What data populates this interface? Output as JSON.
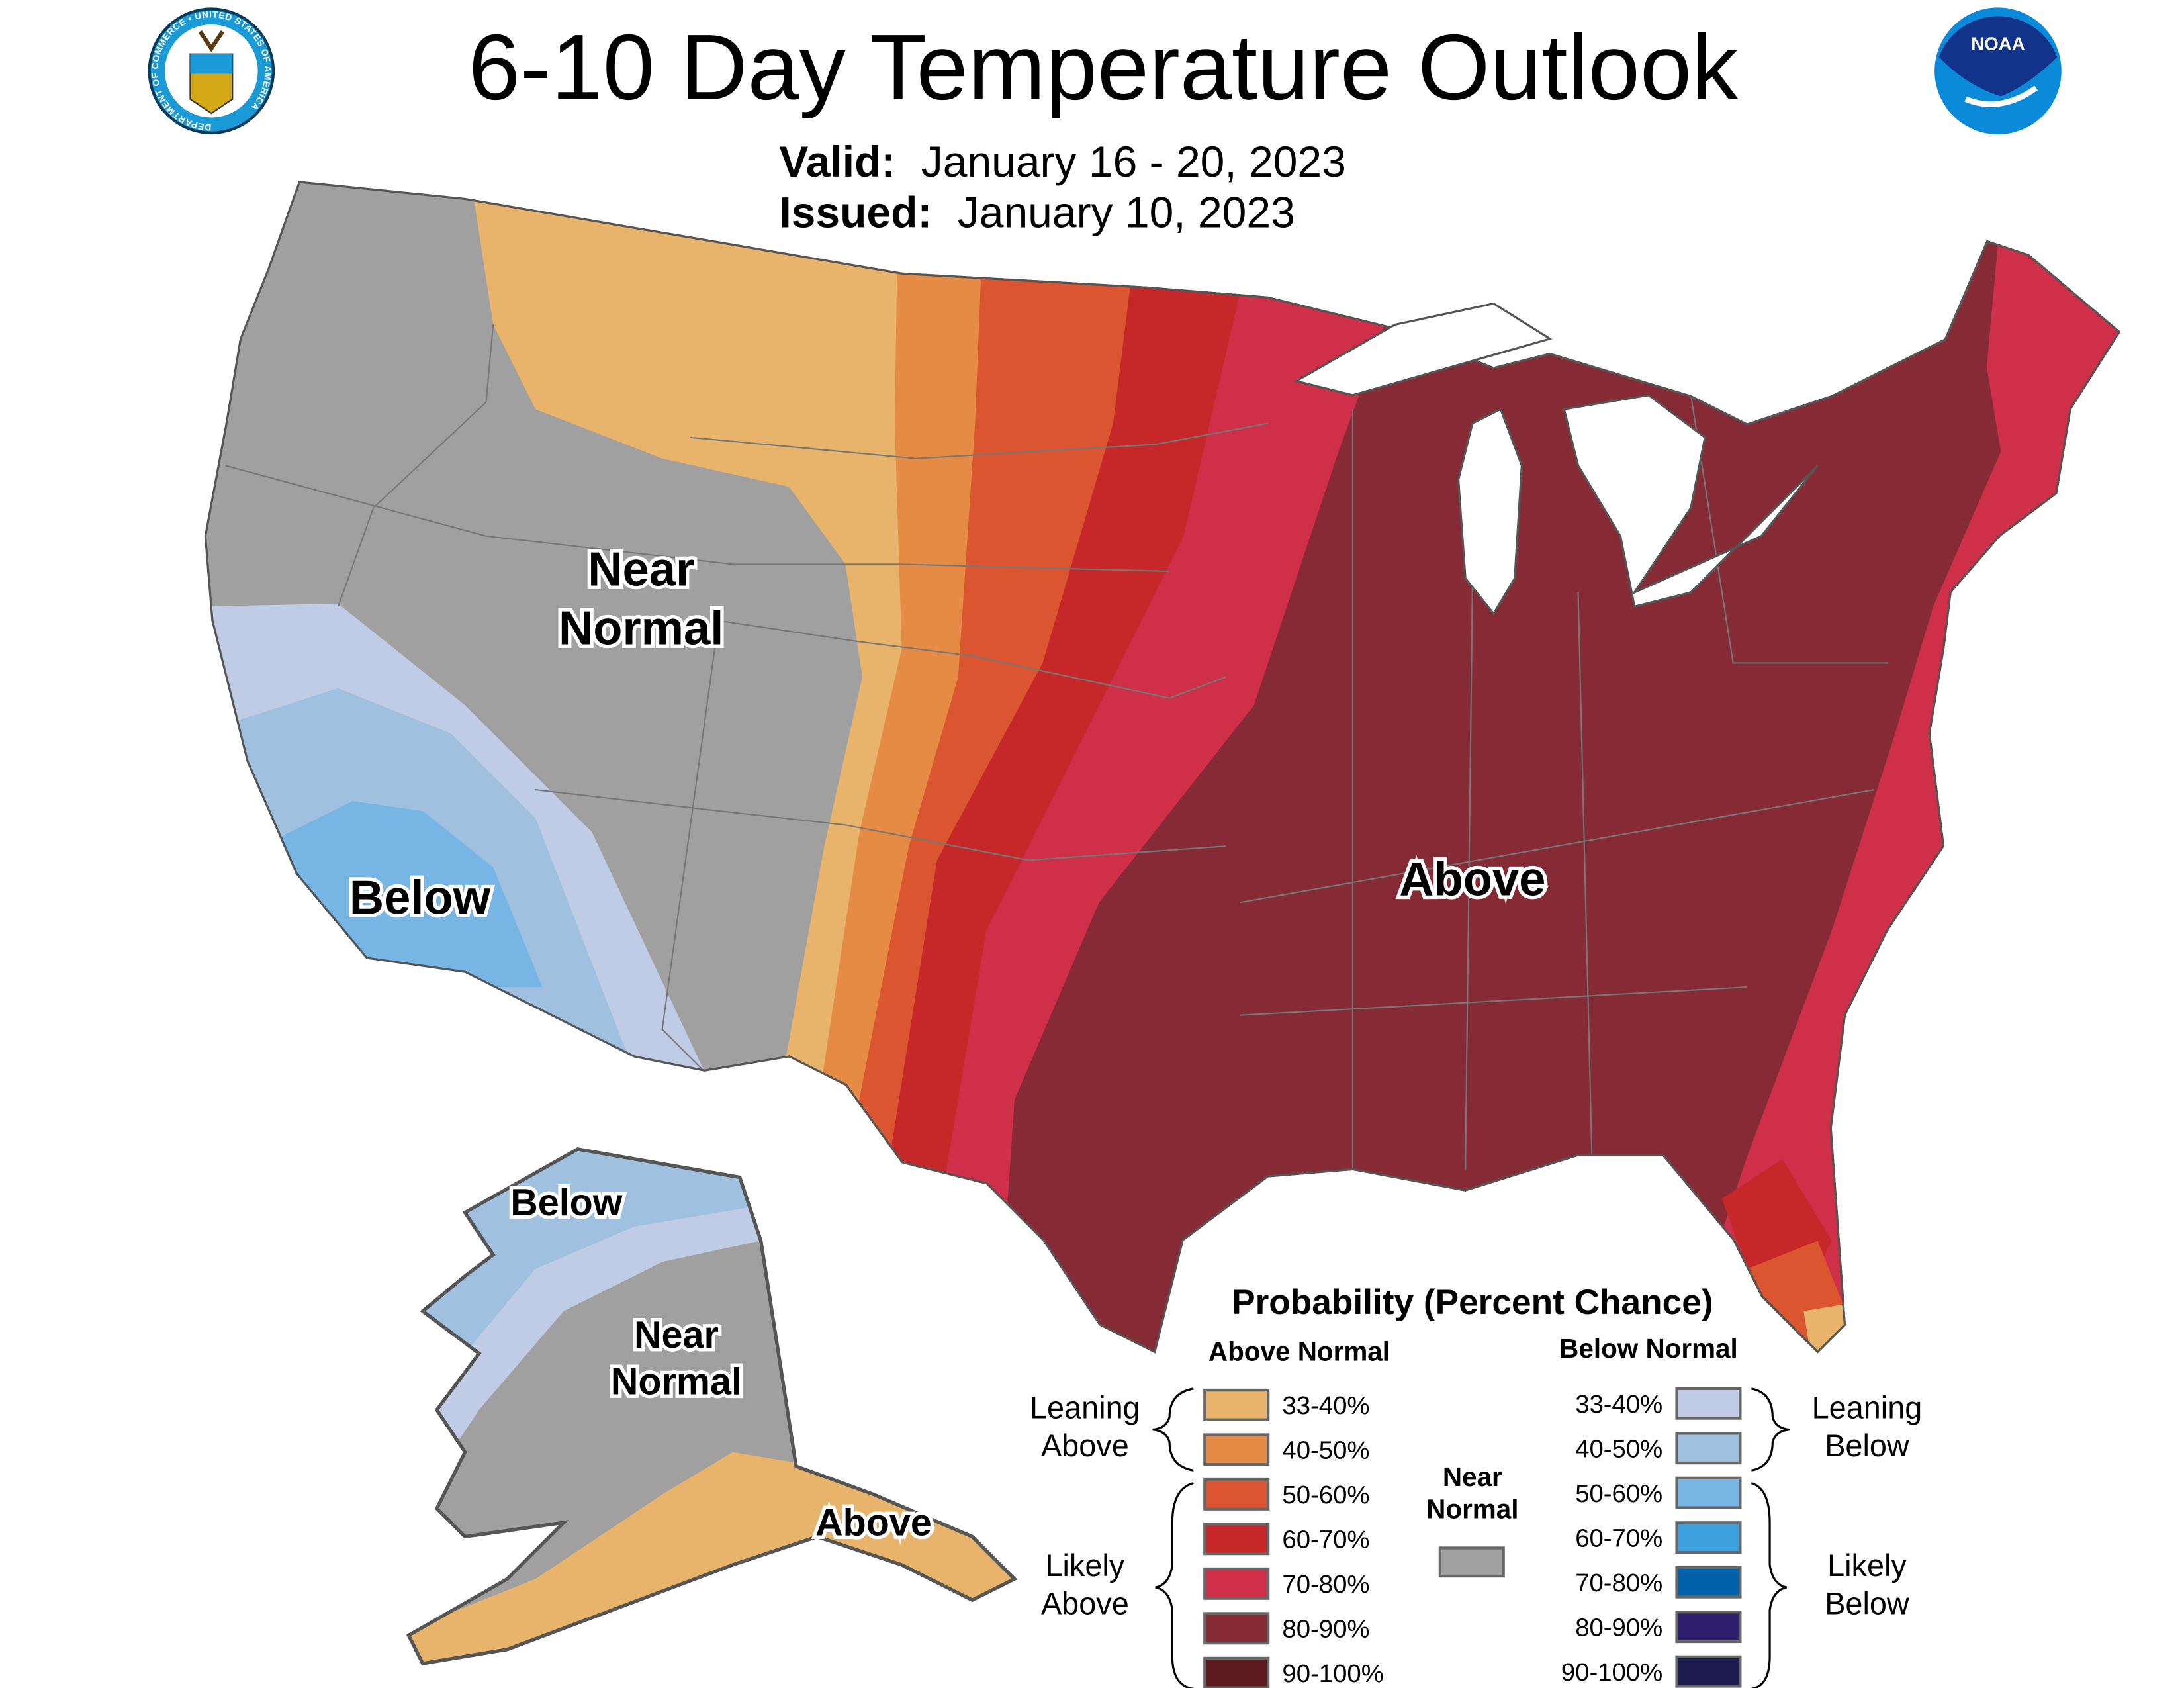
{
  "header": {
    "title": "6-10 Day Temperature Outlook",
    "valid_label": "Valid:",
    "valid_value": "January 16 - 20, 2023",
    "issued_label": "Issued:",
    "issued_value": "January 10, 2023",
    "left_logo": "Department of Commerce seal",
    "left_logo_text": "DEPARTMENT OF COMMERCE • UNITED STATES OF AMERICA",
    "right_logo": "NOAA logo",
    "right_logo_text": "NOAA"
  },
  "map_labels": {
    "conus_near": [
      "Near",
      "Normal"
    ],
    "conus_below": "Below",
    "conus_above": "Above",
    "alaska_below": "Below",
    "alaska_near": [
      "Near",
      "Normal"
    ],
    "alaska_above": "Above"
  },
  "legend": {
    "title": "Probability (Percent Chance)",
    "above_header": "Above Normal",
    "below_header": "Below Normal",
    "leaning_above": [
      "Leaning",
      "Above"
    ],
    "likely_above": [
      "Likely",
      "Above"
    ],
    "leaning_below": [
      "Leaning",
      "Below"
    ],
    "likely_below": [
      "Likely",
      "Below"
    ],
    "near_normal": [
      "Near",
      "Normal"
    ],
    "near_normal_color": "#A0A0A0",
    "above": [
      {
        "label": "33-40%",
        "color": "#E8B36A"
      },
      {
        "label": "40-50%",
        "color": "#E58B45"
      },
      {
        "label": "50-60%",
        "color": "#DB5530"
      },
      {
        "label": "60-70%",
        "color": "#C6282A"
      },
      {
        "label": "70-80%",
        "color": "#CF2F48"
      },
      {
        "label": "80-90%",
        "color": "#862A35"
      },
      {
        "label": "90-100%",
        "color": "#5C1A1E"
      }
    ],
    "below": [
      {
        "label": "33-40%",
        "color": "#C0CCE6"
      },
      {
        "label": "40-50%",
        "color": "#A0C0E0"
      },
      {
        "label": "50-60%",
        "color": "#77B5E4"
      },
      {
        "label": "60-70%",
        "color": "#3DA0DE"
      },
      {
        "label": "70-80%",
        "color": "#0060A8"
      },
      {
        "label": "80-90%",
        "color": "#2D1E6E"
      },
      {
        "label": "90-100%",
        "color": "#1C1A4E"
      }
    ]
  }
}
